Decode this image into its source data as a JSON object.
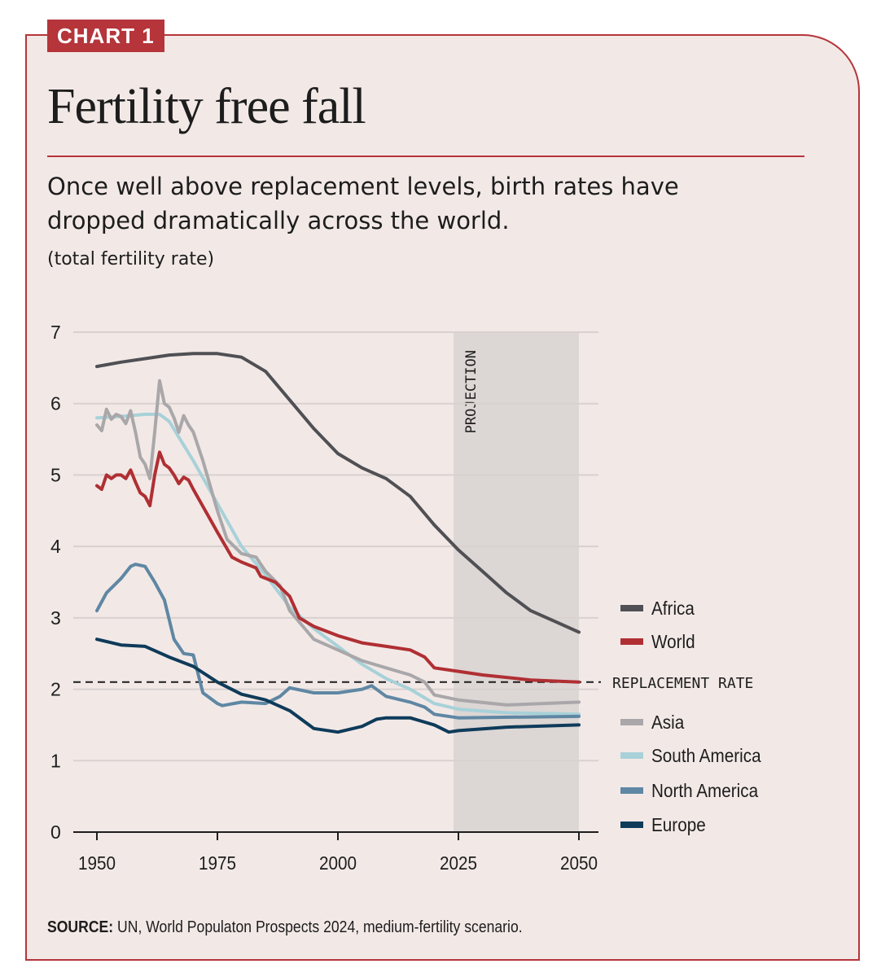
{
  "tag": "CHART 1",
  "title": "Fertility free fall",
  "subtitle": "Once well above replacement levels, birth rates have dropped dramatically across the world.",
  "unit": "(total fertility rate)",
  "source_label": "SOURCE:",
  "source_text": " UN, World Populaton Prospects 2024, medium-fertility scenario.",
  "chart_data": {
    "type": "line",
    "title": "Fertility free fall",
    "ylabel": "(total fertility rate)",
    "xlim": [
      1950,
      2050
    ],
    "ylim": [
      0,
      7
    ],
    "xticks": [
      1950,
      1975,
      2000,
      2025,
      2050
    ],
    "yticks": [
      0,
      1,
      2,
      3,
      4,
      5,
      6,
      7
    ],
    "grid": "horizontal",
    "legend": "right",
    "projection": {
      "label": "PROJECTION",
      "from": 2024,
      "to": 2050,
      "color": "#dcd6d5"
    },
    "replacement_rate": {
      "label": "REPLACEMENT RATE",
      "value": 2.1
    },
    "series": [
      {
        "name": "Africa",
        "color": "#505054",
        "x": [
          1950,
          1955,
          1960,
          1965,
          1970,
          1975,
          1980,
          1985,
          1990,
          1995,
          2000,
          2005,
          2010,
          2015,
          2020,
          2025,
          2030,
          2035,
          2040,
          2045,
          2050
        ],
        "y": [
          6.52,
          6.58,
          6.63,
          6.68,
          6.7,
          6.7,
          6.65,
          6.45,
          6.05,
          5.65,
          5.3,
          5.1,
          4.95,
          4.7,
          4.3,
          3.95,
          3.65,
          3.35,
          3.1,
          2.95,
          2.8
        ]
      },
      {
        "name": "World",
        "color": "#b02f33",
        "x": [
          1950,
          1951,
          1952,
          1953,
          1954,
          1955,
          1956,
          1957,
          1958,
          1959,
          1960,
          1961,
          1962,
          1963,
          1964,
          1965,
          1966,
          1967,
          1968,
          1969,
          1970,
          1975,
          1978,
          1980,
          1983,
          1984,
          1987,
          1990,
          1992,
          1995,
          2000,
          2005,
          2010,
          2015,
          2018,
          2020,
          2025,
          2030,
          2040,
          2050
        ],
        "y": [
          4.85,
          4.8,
          5.0,
          4.95,
          5.0,
          5.0,
          4.95,
          5.07,
          4.9,
          4.75,
          4.7,
          4.57,
          5.0,
          5.32,
          5.15,
          5.1,
          5.0,
          4.88,
          4.97,
          4.93,
          4.8,
          4.2,
          3.85,
          3.78,
          3.7,
          3.58,
          3.5,
          3.3,
          3.0,
          2.88,
          2.75,
          2.65,
          2.6,
          2.55,
          2.45,
          2.3,
          2.25,
          2.2,
          2.13,
          2.1
        ]
      },
      {
        "name": "Asia",
        "color": "#a9a7a9",
        "x": [
          1950,
          1951,
          1952,
          1953,
          1954,
          1955,
          1956,
          1957,
          1958,
          1959,
          1960,
          1961,
          1962,
          1963,
          1964,
          1965,
          1966,
          1967,
          1968,
          1969,
          1970,
          1972,
          1975,
          1977,
          1980,
          1983,
          1985,
          1988,
          1990,
          1995,
          2000,
          2005,
          2010,
          2015,
          2018,
          2020,
          2025,
          2035,
          2050
        ],
        "y": [
          5.7,
          5.62,
          5.92,
          5.78,
          5.85,
          5.82,
          5.72,
          5.9,
          5.6,
          5.25,
          5.15,
          4.95,
          5.6,
          6.32,
          6.0,
          5.95,
          5.8,
          5.6,
          5.83,
          5.7,
          5.6,
          5.2,
          4.5,
          4.1,
          3.9,
          3.85,
          3.65,
          3.45,
          3.1,
          2.7,
          2.55,
          2.4,
          2.3,
          2.2,
          2.1,
          1.92,
          1.85,
          1.78,
          1.82
        ]
      },
      {
        "name": "South America",
        "color": "#a8d1d8",
        "x": [
          1950,
          1955,
          1960,
          1963,
          1965,
          1970,
          1975,
          1980,
          1985,
          1990,
          1995,
          2000,
          2005,
          2010,
          2015,
          2020,
          2025,
          2035,
          2050
        ],
        "y": [
          5.8,
          5.82,
          5.85,
          5.85,
          5.75,
          5.2,
          4.6,
          4.0,
          3.6,
          3.15,
          2.85,
          2.6,
          2.35,
          2.15,
          2.0,
          1.8,
          1.72,
          1.67,
          1.65
        ]
      },
      {
        "name": "North America",
        "color": "#5f87a3",
        "x": [
          1950,
          1952,
          1955,
          1957,
          1958,
          1960,
          1962,
          1964,
          1966,
          1968,
          1970,
          1972,
          1975,
          1976,
          1980,
          1985,
          1988,
          1990,
          1995,
          2000,
          2005,
          2007,
          2010,
          2015,
          2018,
          2020,
          2025,
          2050
        ],
        "y": [
          3.1,
          3.35,
          3.55,
          3.72,
          3.75,
          3.72,
          3.5,
          3.25,
          2.7,
          2.5,
          2.48,
          1.95,
          1.8,
          1.77,
          1.82,
          1.8,
          1.9,
          2.02,
          1.95,
          1.95,
          2.0,
          2.05,
          1.9,
          1.82,
          1.75,
          1.65,
          1.6,
          1.62
        ]
      },
      {
        "name": "Europe",
        "color": "#0f3b5a",
        "x": [
          1950,
          1955,
          1960,
          1965,
          1970,
          1975,
          1980,
          1985,
          1990,
          1995,
          2000,
          2005,
          2008,
          2010,
          2015,
          2020,
          2023,
          2025,
          2035,
          2050
        ],
        "y": [
          2.7,
          2.62,
          2.6,
          2.45,
          2.32,
          2.1,
          1.93,
          1.85,
          1.7,
          1.45,
          1.4,
          1.48,
          1.58,
          1.6,
          1.6,
          1.5,
          1.4,
          1.42,
          1.47,
          1.5
        ]
      }
    ]
  }
}
